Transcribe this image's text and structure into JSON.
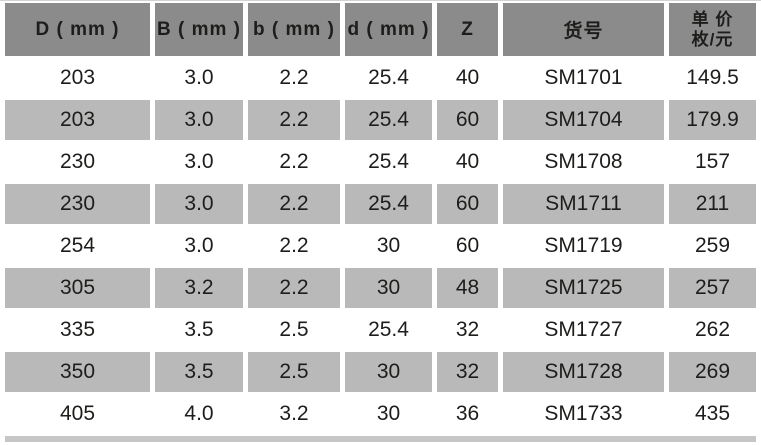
{
  "page": {
    "colors": {
      "header_bg": "#8b8b8b",
      "zebra_row_bg": "#b9b9b9",
      "white_row_bg": "#ffffff",
      "text": "#1d1d1b",
      "bottom_bar": "#c6c6c6"
    }
  },
  "chart_data": {
    "type": "table",
    "title": "",
    "columns": [
      {
        "name": "d-outer-mm",
        "label": "D ( mm )"
      },
      {
        "name": "b-cap-mm",
        "label": "B ( mm )"
      },
      {
        "name": "b-small-mm",
        "label": "b ( mm )"
      },
      {
        "name": "d-bore-mm",
        "label": "d ( mm )"
      },
      {
        "name": "teeth-z",
        "label": "Z"
      },
      {
        "name": "item-no",
        "label": "货号"
      },
      {
        "name": "unit-price",
        "label": "单 价",
        "label2": "枚/元"
      }
    ],
    "rows": [
      [
        "203",
        "3.0",
        "2.2",
        "25.4",
        "40",
        "SM1701",
        "149.5"
      ],
      [
        "203",
        "3.0",
        "2.2",
        "25.4",
        "60",
        "SM1704",
        "179.9"
      ],
      [
        "230",
        "3.0",
        "2.2",
        "25.4",
        "40",
        "SM1708",
        "157"
      ],
      [
        "230",
        "3.0",
        "2.2",
        "25.4",
        "60",
        "SM1711",
        "211"
      ],
      [
        "254",
        "3.0",
        "2.2",
        "30",
        "60",
        "SM1719",
        "259"
      ],
      [
        "305",
        "3.2",
        "2.2",
        "30",
        "48",
        "SM1725",
        "257"
      ],
      [
        "335",
        "3.5",
        "2.5",
        "25.4",
        "32",
        "SM1727",
        "262"
      ],
      [
        "350",
        "3.5",
        "2.5",
        "30",
        "32",
        "SM1728",
        "269"
      ],
      [
        "405",
        "4.0",
        "3.2",
        "30",
        "36",
        "SM1733",
        "435"
      ]
    ]
  }
}
